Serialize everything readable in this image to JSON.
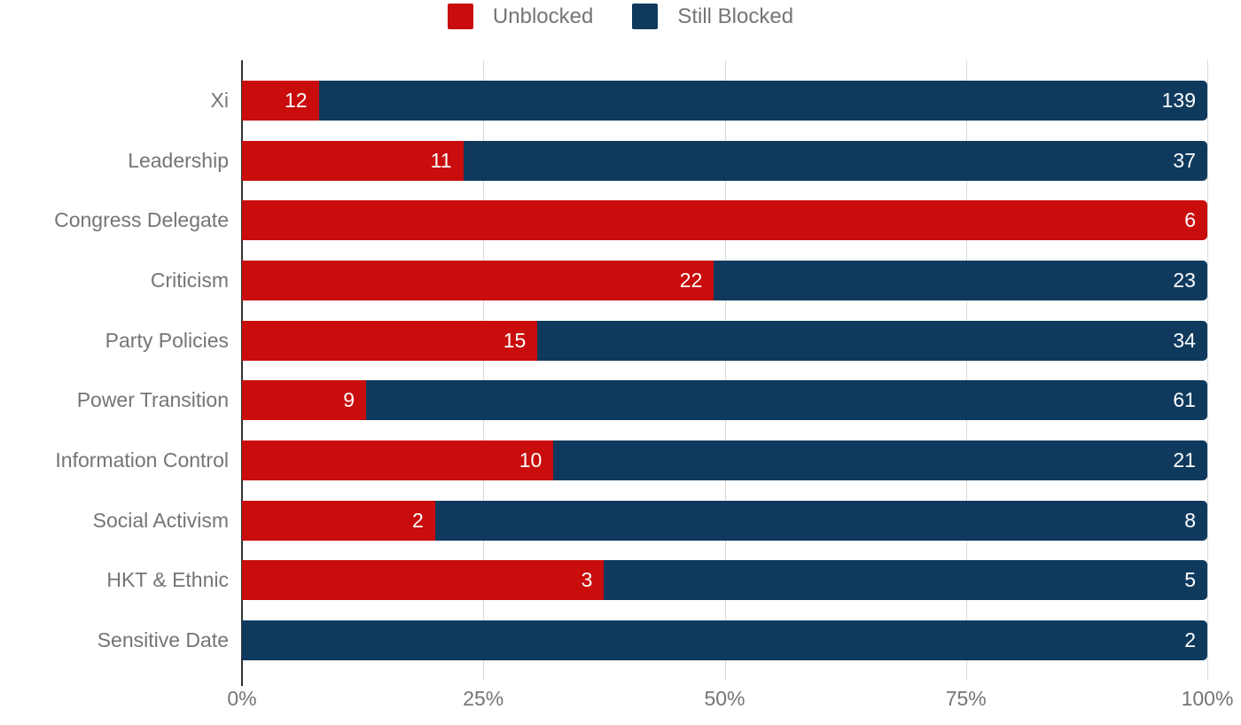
{
  "legend": {
    "items": [
      {
        "label": "Unblocked",
        "color": "#c90c0c"
      },
      {
        "label": "Still Blocked",
        "color": "#0f3a5e"
      }
    ]
  },
  "x_axis": {
    "ticks": [
      "0%",
      "25%",
      "50%",
      "75%",
      "100%"
    ]
  },
  "colors": {
    "unblocked": "#c90c0c",
    "still_blocked": "#0f3a5e",
    "gridline": "#d9d9d9",
    "axis_line": "#333333",
    "label_text": "#757575",
    "bar_value_text": "#ffffff"
  },
  "chart_data": {
    "type": "bar",
    "orientation": "horizontal",
    "stacked": "percent",
    "title": "",
    "xlabel": "",
    "ylabel": "",
    "grid": true,
    "legend_position": "top",
    "x_tick_labels": [
      "0%",
      "25%",
      "50%",
      "75%",
      "100%"
    ],
    "xlim": [
      0,
      100
    ],
    "categories": [
      "Xi",
      "Leadership",
      "Congress Delegate",
      "Criticism",
      "Party Policies",
      "Power Transition",
      "Information Control",
      "Social Activism",
      "HKT & Ethnic",
      "Sensitive Date"
    ],
    "series": [
      {
        "name": "Unblocked",
        "color": "#c90c0c",
        "values": [
          12,
          11,
          6,
          22,
          15,
          9,
          10,
          2,
          3,
          0
        ]
      },
      {
        "name": "Still Blocked",
        "color": "#0f3a5e",
        "values": [
          139,
          37,
          0,
          23,
          34,
          61,
          21,
          8,
          5,
          2
        ]
      }
    ],
    "value_labels_shown_inside_segments": true
  }
}
